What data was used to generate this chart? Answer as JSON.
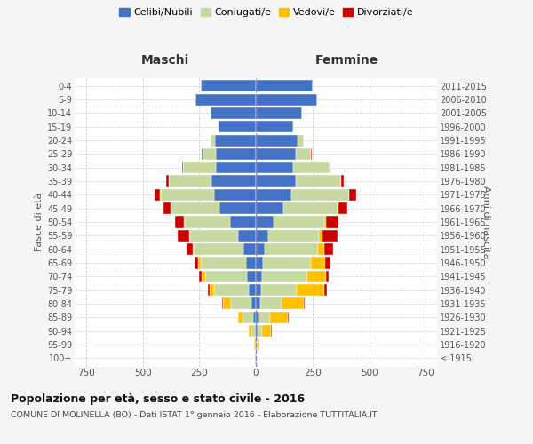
{
  "age_groups": [
    "100+",
    "95-99",
    "90-94",
    "85-89",
    "80-84",
    "75-79",
    "70-74",
    "65-69",
    "60-64",
    "55-59",
    "50-54",
    "45-49",
    "40-44",
    "35-39",
    "30-34",
    "25-29",
    "20-24",
    "15-19",
    "10-14",
    "5-9",
    "0-4"
  ],
  "birth_years": [
    "≤ 1915",
    "1916-1920",
    "1921-1925",
    "1926-1930",
    "1931-1935",
    "1936-1940",
    "1941-1945",
    "1946-1950",
    "1951-1955",
    "1956-1960",
    "1961-1965",
    "1966-1970",
    "1971-1975",
    "1976-1980",
    "1981-1985",
    "1986-1990",
    "1991-1995",
    "1996-2000",
    "2001-2005",
    "2006-2010",
    "2011-2015"
  ],
  "male": {
    "celibi": [
      2,
      2,
      5,
      12,
      20,
      30,
      40,
      45,
      55,
      80,
      115,
      160,
      185,
      195,
      175,
      175,
      180,
      165,
      200,
      265,
      245
    ],
    "coniugati": [
      1,
      3,
      15,
      45,
      90,
      155,
      185,
      200,
      220,
      210,
      200,
      215,
      235,
      190,
      145,
      60,
      20,
      5,
      0,
      0,
      0
    ],
    "vedovi": [
      0,
      2,
      10,
      20,
      35,
      20,
      15,
      10,
      5,
      5,
      3,
      3,
      2,
      1,
      1,
      0,
      0,
      0,
      0,
      0,
      0
    ],
    "divorziati": [
      0,
      0,
      0,
      2,
      3,
      5,
      10,
      15,
      25,
      50,
      40,
      30,
      25,
      10,
      5,
      3,
      1,
      0,
      0,
      0,
      0
    ]
  },
  "female": {
    "nubili": [
      2,
      3,
      8,
      12,
      18,
      22,
      28,
      30,
      40,
      55,
      80,
      120,
      155,
      175,
      165,
      175,
      185,
      165,
      205,
      270,
      250
    ],
    "coniugate": [
      1,
      4,
      20,
      50,
      95,
      160,
      200,
      215,
      235,
      225,
      220,
      240,
      255,
      200,
      160,
      70,
      25,
      5,
      0,
      0,
      0
    ],
    "vedove": [
      0,
      10,
      40,
      80,
      100,
      120,
      80,
      60,
      25,
      15,
      8,
      5,
      3,
      2,
      1,
      0,
      0,
      0,
      0,
      0,
      0
    ],
    "divorziate": [
      0,
      0,
      1,
      2,
      3,
      10,
      15,
      25,
      40,
      65,
      55,
      40,
      30,
      10,
      5,
      3,
      1,
      0,
      0,
      0,
      0
    ]
  },
  "colors": {
    "celibi": "#4472c4",
    "coniugati": "#c5d9a0",
    "vedovi": "#ffc000",
    "divorziati": "#cc0000"
  },
  "xlim": 800,
  "title": "Popolazione per età, sesso e stato civile - 2016",
  "subtitle": "COMUNE DI MOLINELLA (BO) - Dati ISTAT 1° gennaio 2016 - Elaborazione TUTTITALIA.IT",
  "xlabel_left": "Maschi",
  "xlabel_right": "Femmine",
  "ylabel_left": "Fasce di età",
  "ylabel_right": "Anni di nascita",
  "bg_color": "#f5f5f5",
  "plot_bg": "#ffffff"
}
